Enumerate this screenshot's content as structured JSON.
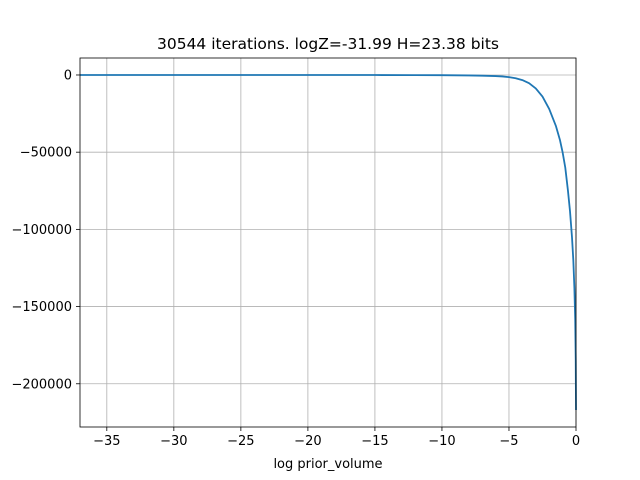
{
  "chart_data": {
    "type": "line",
    "title": "30544 iterations. logZ=-31.99 H=23.38 bits",
    "xlabel": "log prior_volume",
    "ylabel": "",
    "xlim": [
      -37,
      0
    ],
    "ylim": [
      -228000,
      11000
    ],
    "grid": true,
    "line_color": "#1f77b4",
    "xticks": [
      -35,
      -30,
      -25,
      -20,
      -15,
      -10,
      -5,
      0
    ],
    "xtick_labels": [
      "−35",
      "−30",
      "−25",
      "−20",
      "−15",
      "−10",
      "−5",
      "0"
    ],
    "yticks": [
      0,
      -50000,
      -100000,
      -150000,
      -200000
    ],
    "ytick_labels": [
      "0",
      "−50000",
      "−100000",
      "−150000",
      "−200000"
    ],
    "series": [
      {
        "name": "",
        "x": [
          -37,
          -30,
          -25,
          -20,
          -15,
          -12,
          -10,
          -8,
          -7,
          -6,
          -5.5,
          -5,
          -4.5,
          -4,
          -3.5,
          -3,
          -2.5,
          -2,
          -1.5,
          -1.2,
          -1.0,
          -0.8,
          -0.6,
          -0.45,
          -0.3,
          -0.2,
          -0.12,
          -0.06,
          -0.02,
          0
        ],
        "y": [
          0,
          0,
          0,
          0,
          -30,
          -80,
          -150,
          -300,
          -450,
          -700,
          -950,
          -1400,
          -2100,
          -3300,
          -5300,
          -8700,
          -14000,
          -22000,
          -33000,
          -42000,
          -50000,
          -60000,
          -75000,
          -88000,
          -105000,
          -120000,
          -138000,
          -158000,
          -185000,
          -217000
        ]
      }
    ]
  }
}
